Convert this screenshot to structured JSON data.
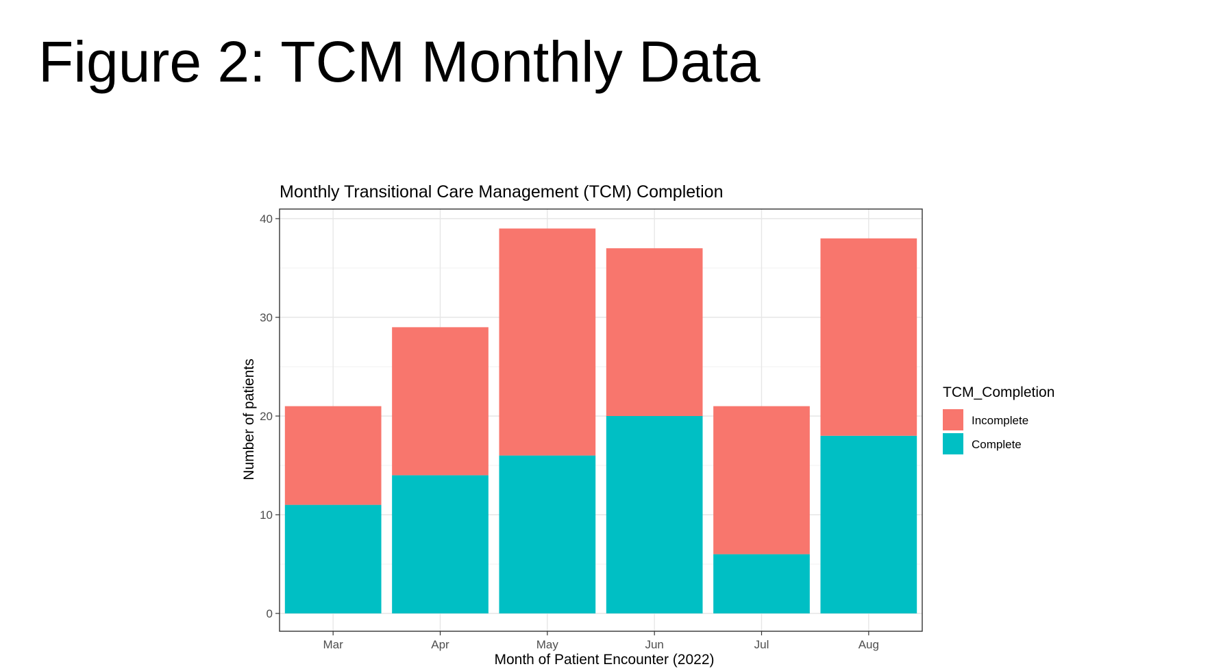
{
  "slide": {
    "title": "Figure 2: TCM Monthly Data"
  },
  "chart_data": {
    "type": "bar",
    "stacked": true,
    "title": "Monthly Transitional Care Management (TCM) Completion",
    "xlabel": "Month of Patient Encounter (2022)",
    "ylabel": "Number of patients",
    "categories": [
      "Mar",
      "Apr",
      "May",
      "Jun",
      "Jul",
      "Aug"
    ],
    "ylim": [
      0,
      40
    ],
    "yticks": [
      0,
      10,
      20,
      30,
      40
    ],
    "grid": true,
    "legend_position": "right",
    "legend_title": "TCM_Completion",
    "series": [
      {
        "name": "Complete",
        "color": "#00BFC4",
        "values": [
          11,
          14,
          16,
          20,
          6,
          18
        ]
      },
      {
        "name": "Incomplete",
        "color": "#F8766D",
        "values": [
          10,
          15,
          23,
          17,
          15,
          20
        ]
      }
    ],
    "legend_order": [
      "Incomplete",
      "Complete"
    ]
  }
}
